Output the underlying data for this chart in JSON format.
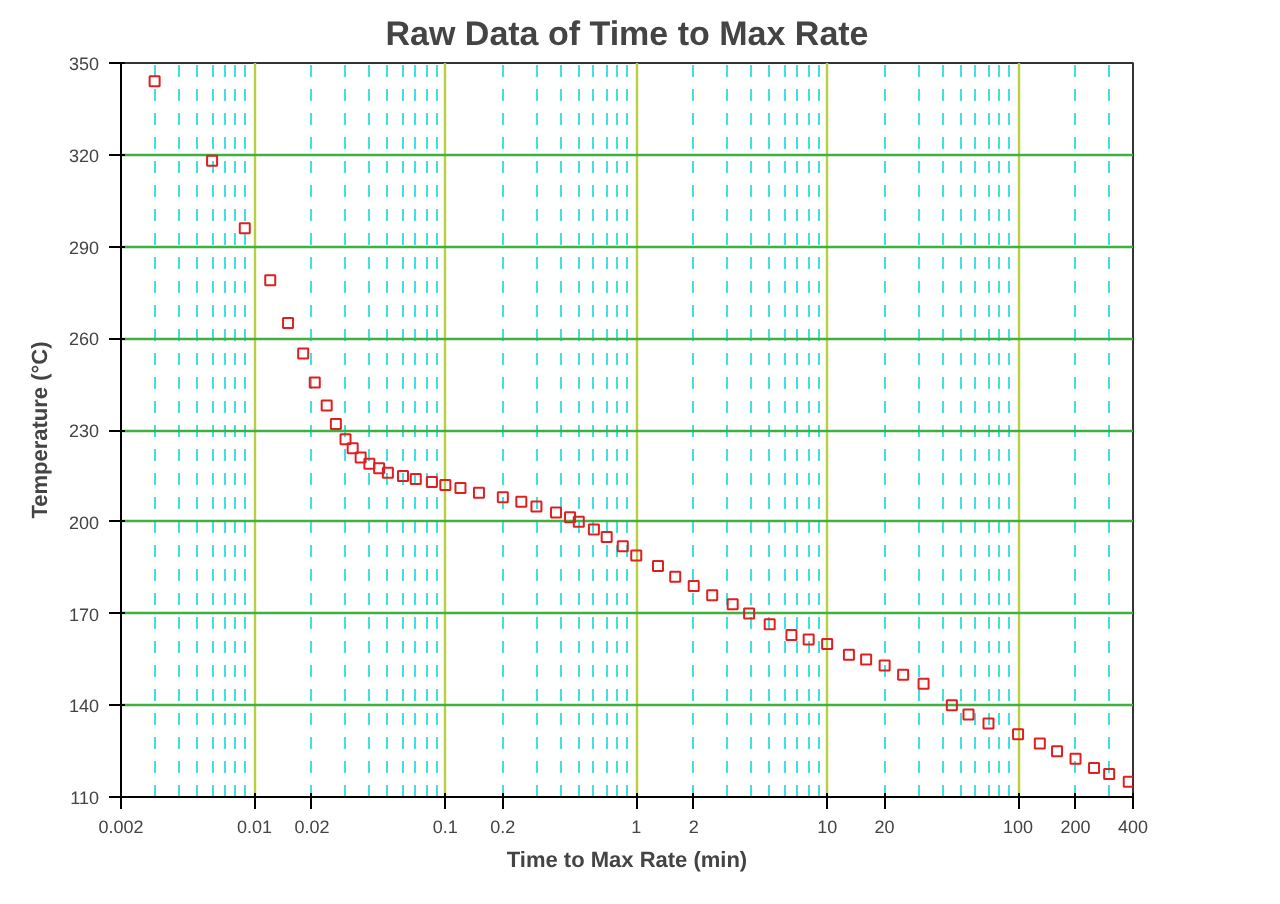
{
  "chart_data": {
    "type": "scatter",
    "title": "Raw Data of Time to Max Rate",
    "xlabel": "Time to Max Rate (min)",
    "ylabel": "Temperature (°C)",
    "log": "x",
    "marker": "square",
    "grid": true,
    "xlim": [
      0.002,
      400
    ],
    "xticks": [
      0.002,
      0.01,
      0.02,
      0.1,
      0.2,
      1,
      2,
      10,
      20,
      100,
      200,
      400
    ],
    "ylim": [
      110,
      350
    ],
    "yticks": [
      110,
      140,
      170,
      200,
      230,
      260,
      290,
      320,
      350
    ],
    "series": [
      {
        "color": "#e02020",
        "x": [
          0.003,
          0.006,
          0.0089,
          0.0121,
          0.015,
          0.018,
          0.0207,
          0.0239,
          0.0267,
          0.03,
          0.0327,
          0.036,
          0.04,
          0.045,
          0.05,
          0.06,
          0.07,
          0.085,
          0.1,
          0.12,
          0.15,
          0.2,
          0.25,
          0.3,
          0.38,
          0.45,
          0.5,
          0.6,
          0.7,
          0.85,
          1,
          1.3,
          1.6,
          2,
          2.5,
          3.2,
          3.9,
          5,
          6.5,
          8,
          10,
          13,
          16,
          20,
          25,
          32,
          45,
          55,
          70,
          100,
          130,
          160,
          200,
          250,
          300,
          380
        ],
        "values": [
          344,
          318,
          296,
          279,
          265,
          255,
          245.5,
          238,
          232,
          227,
          224,
          221,
          219,
          217.5,
          216,
          215,
          214,
          213,
          212,
          211,
          209.5,
          208,
          206.5,
          205,
          203,
          201.5,
          200,
          197.5,
          195,
          192,
          189,
          185.5,
          182,
          179,
          176,
          173,
          170,
          166.5,
          163,
          161.5,
          160,
          156.5,
          155,
          153,
          150,
          147,
          140,
          137,
          134,
          130.5,
          127.5,
          125,
          122.5,
          119.5,
          117.5,
          115
        ]
      }
    ]
  }
}
